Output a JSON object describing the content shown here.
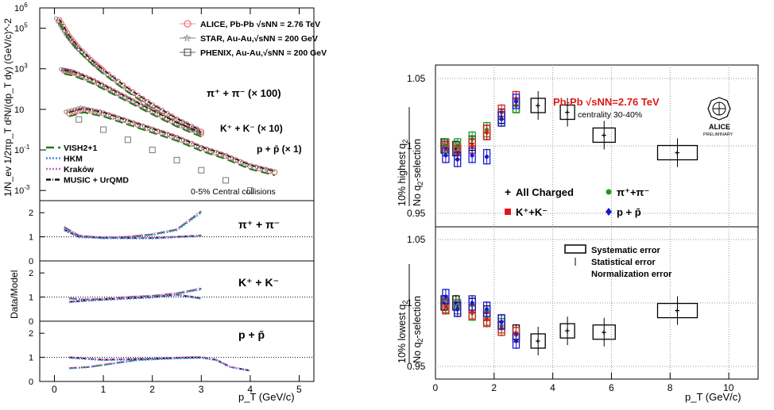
{
  "chart_data": [
    {
      "type": "scatter",
      "panel": "spectra",
      "xlabel": "p_T (GeV/c)",
      "ylabel": "1/N_ev 1/2πp_T d²N/(dp_T dy) (GeV/c)^-2",
      "xlim": [
        -0.3,
        5.3
      ],
      "ylim_log10": [
        -3.5,
        6
      ],
      "ylog": true,
      "x_ticks": [
        "0",
        "1",
        "2",
        "3",
        "4",
        "5"
      ],
      "y_ticks": [
        {
          "base": "10",
          "exp": "6",
          "v": 6
        },
        {
          "base": "10",
          "exp": "5",
          "v": 5
        },
        {
          "base": "10",
          "exp": "3",
          "v": 3
        },
        {
          "base": "10",
          "exp": "",
          "v": 1
        },
        {
          "base": "10",
          "exp": "-1",
          "v": -1
        },
        {
          "base": "10",
          "exp": "-3",
          "v": -3
        }
      ],
      "legend_data": [
        {
          "label": "ALICE, Pb-Pb √sNN = 2.76 TeV",
          "marker": "circle",
          "color": "#e8737a"
        },
        {
          "label": "STAR, Au-Au,√sNN = 200 GeV",
          "marker": "star",
          "color": "#555555"
        },
        {
          "label": "PHENIX, Au-Au,√sNN = 200 GeV",
          "marker": "square",
          "color": "#333333"
        }
      ],
      "legend_models": [
        {
          "label": "VISH2+1",
          "color": "#1e7a1e",
          "dash": "10,5"
        },
        {
          "label": "HKM",
          "color": "#3b8ee8",
          "dash": "2,2"
        },
        {
          "label": "Kraków",
          "color": "#d45fd4",
          "dash": "2,2"
        },
        {
          "label": "MUSIC + UrQMD",
          "color": "#111111",
          "dash": "6,2,1,2"
        }
      ],
      "annotations": [
        "π⁺ + π⁻ (× 100)",
        "K⁺ + K⁻ (× 10)",
        "p + p̄ (× 1)",
        "0-5% Central collisions"
      ],
      "series": [
        {
          "name": "π⁺ + π⁻ (× 100)",
          "x": [
            0.1,
            0.3,
            0.5,
            0.8,
            1.0,
            1.5,
            2.0,
            2.5,
            3.0
          ],
          "y_log10": [
            5.4,
            4.6,
            4.0,
            3.3,
            2.9,
            2.0,
            1.2,
            0.5,
            -0.1
          ]
        },
        {
          "name": "K⁺ + K⁻ (× 10)",
          "x": [
            0.2,
            0.4,
            0.8,
            1.2,
            1.6,
            2.0,
            2.5,
            3.0
          ],
          "y_log10": [
            2.9,
            2.8,
            2.4,
            1.9,
            1.4,
            0.9,
            0.3,
            -0.2
          ]
        },
        {
          "name": "p + p̄ (× 1)",
          "x": [
            0.3,
            0.6,
            1.0,
            1.5,
            2.0,
            2.5,
            3.0,
            3.5,
            4.0,
            4.5
          ],
          "y_log10": [
            0.8,
            1.0,
            0.8,
            0.4,
            0.0,
            -0.4,
            -0.9,
            -1.3,
            -1.8,
            -2.1
          ]
        },
        {
          "name": "PHENIX",
          "x": [
            0.5,
            1.0,
            1.5,
            2.0,
            2.5,
            3.0,
            3.5,
            4.0
          ],
          "y_log10": [
            0.5,
            0.0,
            -0.5,
            -1.0,
            -1.5,
            -2.0,
            -2.5,
            -3.0
          ]
        }
      ]
    },
    {
      "type": "line",
      "panel": "ratio-pions",
      "ylabel": "Data/Model",
      "annotation": "π⁺ + π⁻",
      "xlim": [
        -0.3,
        5.3
      ],
      "ylim": [
        0,
        2.5
      ],
      "y_ticks": [
        "0",
        "1",
        "2"
      ],
      "series": [
        {
          "name": "VISH2+1",
          "x": [
            0.2,
            0.5,
            1.0,
            1.5,
            2.0,
            2.5,
            2.8,
            3.0
          ],
          "y": [
            1.4,
            1.05,
            0.95,
            1.0,
            1.1,
            1.3,
            1.75,
            2.05
          ]
        },
        {
          "name": "MUSIC + UrQMD",
          "x": [
            0.2,
            0.5,
            1.0,
            1.5,
            2.0,
            2.5,
            3.0
          ],
          "y": [
            1.3,
            1.0,
            0.97,
            0.95,
            0.95,
            1.0,
            1.05
          ]
        }
      ]
    },
    {
      "type": "line",
      "panel": "ratio-kaons",
      "annotation": "K⁺ + K⁻",
      "xlim": [
        -0.3,
        5.3
      ],
      "ylim": [
        0,
        2.5
      ],
      "y_ticks": [
        "0",
        "1",
        "2"
      ],
      "series": [
        {
          "name": "VISH2+1",
          "x": [
            0.3,
            0.6,
            1.0,
            1.5,
            2.0,
            2.5,
            3.0
          ],
          "y": [
            0.95,
            0.9,
            0.92,
            1.0,
            1.05,
            1.15,
            1.35
          ]
        },
        {
          "name": "MUSIC + UrQMD",
          "x": [
            0.3,
            0.6,
            1.0,
            1.5,
            2.0,
            2.5,
            3.0
          ],
          "y": [
            0.8,
            0.85,
            0.9,
            0.95,
            1.0,
            1.1,
            0.95
          ]
        }
      ]
    },
    {
      "type": "line",
      "panel": "ratio-protons",
      "annotation": "p + p̄",
      "xlim": [
        -0.3,
        5.3
      ],
      "ylim": [
        0,
        2.5
      ],
      "y_ticks": [
        "0",
        "1",
        "2"
      ],
      "series": [
        {
          "name": "VISH2+1",
          "x": [
            0.3,
            0.7,
            1.2,
            1.7,
            2.2,
            2.7,
            3.0
          ],
          "y": [
            0.55,
            0.6,
            0.75,
            0.9,
            0.95,
            1.0,
            1.0
          ]
        },
        {
          "name": "MUSIC + UrQMD",
          "x": [
            0.3,
            1.0,
            2.0,
            3.0,
            3.3,
            3.6,
            4.0
          ],
          "y": [
            1.0,
            0.9,
            0.95,
            1.0,
            0.9,
            0.6,
            0.45
          ]
        }
      ]
    },
    {
      "type": "scatter",
      "panel": "v2-highest",
      "title": "Pb-Pb √sNN=2.76 TeV",
      "subtitle": "centrality 30-40%",
      "ylabel": "10% highest q2 / No q2-selection",
      "xlim": [
        0,
        11
      ],
      "ylim": [
        0.94,
        1.06
      ],
      "y_ticks": [
        "0.95",
        "1",
        "1.05"
      ],
      "logo_text": "ALICE",
      "logo_sub": "PRELIMINARY",
      "legend": [
        {
          "label": "All Charged",
          "marker": "plus",
          "color": "#000000"
        },
        {
          "label": "π⁺+π⁻",
          "marker": "dot",
          "color": "#1a9c1a"
        },
        {
          "label": "K⁺+K⁻",
          "marker": "square",
          "color": "#e01818"
        },
        {
          "label": "p + p̄",
          "marker": "diamond",
          "color": "#1818d0"
        }
      ],
      "series": [
        {
          "name": "All Charged",
          "x": [
            0.3,
            0.7,
            1.25,
            1.75,
            2.25,
            2.75,
            3.5,
            4.5,
            5.75,
            8.25
          ],
          "y": [
            1.0,
            0.998,
            1.002,
            1.01,
            1.022,
            1.03,
            1.03,
            1.025,
            1.008,
            0.995
          ]
        },
        {
          "name": "π⁺+π⁻",
          "x": [
            0.35,
            0.75,
            1.25,
            1.75,
            2.25,
            2.75
          ],
          "y": [
            1.0,
            1.0,
            1.005,
            1.012,
            1.02,
            1.03
          ]
        },
        {
          "name": "K⁺+K⁻",
          "x": [
            0.35,
            0.75,
            1.25,
            1.75,
            2.25,
            2.75
          ],
          "y": [
            0.998,
            0.995,
            1.0,
            1.01,
            1.025,
            1.035
          ]
        },
        {
          "name": "p + p̄",
          "x": [
            0.35,
            0.75,
            1.25,
            1.75,
            2.25,
            2.75
          ],
          "y": [
            0.993,
            0.99,
            0.993,
            0.992,
            1.02,
            1.033
          ]
        }
      ]
    },
    {
      "type": "scatter",
      "panel": "v2-lowest",
      "ylabel": "10% lowest q2 / No q2-selection",
      "xlabel": "p_T (GeV/c)",
      "xlim": [
        0,
        11
      ],
      "ylim": [
        0.94,
        1.06
      ],
      "y_ticks": [
        "0.95",
        "1",
        "1.05"
      ],
      "x_ticks": [
        "0",
        "2",
        "4",
        "6",
        "8",
        "10"
      ],
      "legend": [
        {
          "label": "Systematic error"
        },
        {
          "label": "Statistical error"
        },
        {
          "label": "Normalization error"
        }
      ],
      "series": [
        {
          "name": "All Charged",
          "x": [
            0.3,
            0.7,
            1.25,
            1.75,
            2.25,
            2.75,
            3.5,
            4.5,
            5.75,
            8.25
          ],
          "y": [
            1.0,
            1.0,
            0.998,
            0.992,
            0.985,
            0.977,
            0.97,
            0.978,
            0.977,
            0.994
          ]
        },
        {
          "name": "π⁺+π⁻",
          "x": [
            0.35,
            0.75,
            1.25,
            1.75,
            2.25,
            2.75
          ],
          "y": [
            0.998,
            0.997,
            0.992,
            0.988,
            0.982,
            0.975
          ]
        },
        {
          "name": "K⁺+K⁻",
          "x": [
            0.35,
            0.75,
            1.25,
            1.75,
            2.25,
            2.75
          ],
          "y": [
            0.997,
            0.995,
            0.993,
            0.987,
            0.98,
            0.975
          ]
        },
        {
          "name": "p + p̄",
          "x": [
            0.35,
            0.75,
            1.25,
            1.75,
            2.25,
            2.75
          ],
          "y": [
            1.005,
            0.995,
            1.0,
            0.995,
            0.985,
            0.97
          ]
        }
      ]
    }
  ]
}
